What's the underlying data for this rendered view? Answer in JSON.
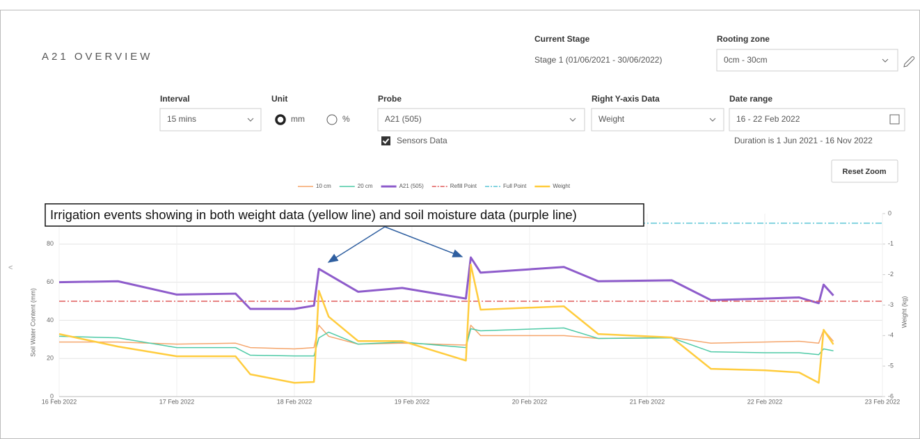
{
  "header": {
    "title": "A21 OVERVIEW",
    "current_stage_label": "Current Stage",
    "current_stage_value": "Stage 1 (01/06/2021 - 30/06/2022)",
    "rooting_zone_label": "Rooting zone",
    "rooting_zone_value": "0cm - 30cm"
  },
  "filters": {
    "interval_label": "Interval",
    "interval_value": "15 mins",
    "unit_label": "Unit",
    "unit_options": [
      "mm",
      "%"
    ],
    "probe_label": "Probe",
    "probe_value": "A21 (505)",
    "sensors_data": "Sensors Data",
    "right_axis_label": "Right Y-axis Data",
    "right_axis_value": "Weight",
    "date_range_label": "Date range",
    "date_range_value": "16 - 22 Feb 2022",
    "duration": "Duration is 1 Jun 2021 - 16 Nov 2022",
    "reset_zoom": "Reset Zoom"
  },
  "side_toggle": "<",
  "chart_data": {
    "type": "line",
    "annotation": "Irrigation events showing in both weight data (yellow line) and soil moisture data (purple line)",
    "y_label": "Soil Water Content (mm)",
    "y2_label": "Weight (kg)",
    "x": [
      "2022-02-16T00:00",
      "2022-02-16T12:00",
      "2022-02-17T00:00",
      "2022-02-17T12:00",
      "2022-02-17T15:00",
      "2022-02-18T00:00",
      "2022-02-18T04:00",
      "2022-02-18T05:00",
      "2022-02-18T07:00",
      "2022-02-18T13:00",
      "2022-02-18T22:00",
      "2022-02-19T11:00",
      "2022-02-19T12:00",
      "2022-02-19T14:00",
      "2022-02-20T07:00",
      "2022-02-20T14:00",
      "2022-02-21T05:00",
      "2022-02-21T13:00",
      "2022-02-22T00:00",
      "2022-02-22T07:00",
      "2022-02-22T11:00",
      "2022-02-22T12:00",
      "2022-02-22T14:00"
    ],
    "xlim": [
      "2022-02-16T00:00",
      "2022-02-23T00:00"
    ],
    "xticks": [
      {
        "value": "2022-02-16T00:00",
        "label": "16 Feb 2022"
      },
      {
        "value": "2022-02-17T00:00",
        "label": "17 Feb 2022"
      },
      {
        "value": "2022-02-18T00:00",
        "label": "18 Feb 2022"
      },
      {
        "value": "2022-02-19T00:00",
        "label": "19 Feb 2022"
      },
      {
        "value": "2022-02-20T00:00",
        "label": "20 Feb 2022"
      },
      {
        "value": "2022-02-21T00:00",
        "label": "21 Feb 2022"
      },
      {
        "value": "2022-02-22T00:00",
        "label": "22 Feb 2022"
      },
      {
        "value": "2022-02-23T00:00",
        "label": "23 Feb 2022"
      }
    ],
    "ylim": [
      0,
      96
    ],
    "yticks": [
      0,
      20,
      40,
      60,
      80
    ],
    "y2lim": [
      -6,
      0
    ],
    "y2ticks": [
      -6,
      -5,
      -4,
      -3,
      -2,
      -1,
      0
    ],
    "grid": true,
    "series": [
      {
        "name": "10 cm",
        "color": "#f5a56b",
        "values": [
          28.6,
          28.6,
          27.5,
          28,
          25.7,
          25,
          25.7,
          37.4,
          31.6,
          27.5,
          28,
          27,
          37.4,
          32,
          32,
          30.5,
          31,
          28,
          28.6,
          29,
          28,
          35,
          29
        ]
      },
      {
        "name": "20 cm",
        "color": "#4ecaa6",
        "values": [
          31.6,
          30.8,
          25.7,
          25.7,
          21.7,
          21.3,
          21.3,
          30.8,
          33.8,
          27.5,
          28.6,
          25.7,
          35.6,
          34.5,
          36,
          30.5,
          30.8,
          23.5,
          23,
          23,
          22,
          25,
          24
        ]
      },
      {
        "name": "A21 (505)",
        "color": "#8e5ccb",
        "width": 3,
        "values": [
          60,
          60.5,
          53.5,
          54,
          46,
          46,
          47.7,
          67,
          64,
          55,
          57,
          51.4,
          73,
          65,
          68,
          60.5,
          61,
          50.6,
          51.4,
          52,
          49,
          58.7,
          53
        ]
      },
      {
        "name": "Refill Point",
        "color": "#e05a5a",
        "value": 50
      },
      {
        "name": "Full Point",
        "color": "#5cc6d6",
        "value": 91
      },
      {
        "name": "Weight",
        "color": "#ffcc3d",
        "axis": "y2",
        "width": 2.5,
        "values": [
          -3.95,
          -4.36,
          -4.68,
          -4.68,
          -5.27,
          -5.55,
          -5.52,
          -2.53,
          -3.38,
          -4.18,
          -4.18,
          -4.82,
          -1.67,
          -3.15,
          -3.04,
          -3.95,
          -4.06,
          -5.09,
          -5.14,
          -5.21,
          -5.55,
          -3.81,
          -4.29
        ]
      }
    ]
  }
}
